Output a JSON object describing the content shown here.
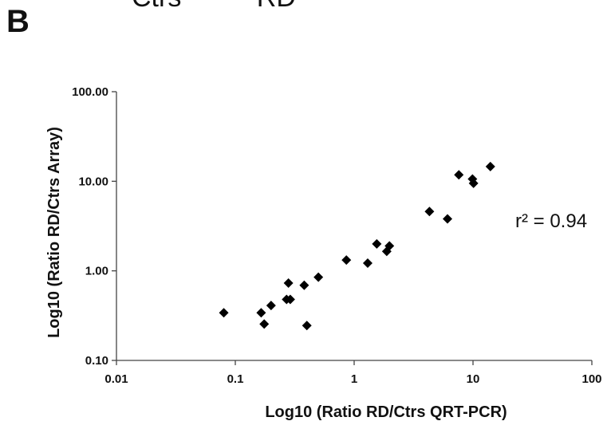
{
  "header_partial": "Ctrs          RD",
  "panel_label": "B",
  "chart_data": {
    "type": "scatter",
    "title": "",
    "xlabel": "Log10 (Ratio RD/Ctrs QRT-PCR)",
    "ylabel": "Log10 (Ratio RD/Ctrs Array)",
    "x_scale": "log",
    "y_scale": "log",
    "xlim": [
      0.01,
      100
    ],
    "ylim": [
      0.1,
      100
    ],
    "x_ticks": [
      0.01,
      0.1,
      1,
      10,
      100
    ],
    "x_tick_labels": [
      "0.01",
      "0.1",
      "1",
      "10",
      "100"
    ],
    "y_ticks": [
      0.1,
      1,
      10,
      100
    ],
    "y_tick_labels": [
      "0.10",
      "1.00",
      "10.00",
      "100.00"
    ],
    "grid": false,
    "legend": "none",
    "marker": "diamond",
    "marker_color": "#000000",
    "annotation": "r² = 0.94",
    "points": [
      {
        "x": 0.08,
        "y": 0.34
      },
      {
        "x": 0.165,
        "y": 0.34
      },
      {
        "x": 0.175,
        "y": 0.255
      },
      {
        "x": 0.2,
        "y": 0.41
      },
      {
        "x": 0.27,
        "y": 0.48
      },
      {
        "x": 0.28,
        "y": 0.73
      },
      {
        "x": 0.29,
        "y": 0.48
      },
      {
        "x": 0.38,
        "y": 0.69
      },
      {
        "x": 0.4,
        "y": 0.245
      },
      {
        "x": 0.5,
        "y": 0.85
      },
      {
        "x": 0.86,
        "y": 1.32
      },
      {
        "x": 1.3,
        "y": 1.22
      },
      {
        "x": 1.55,
        "y": 2.0
      },
      {
        "x": 1.88,
        "y": 1.65
      },
      {
        "x": 1.98,
        "y": 1.9
      },
      {
        "x": 4.3,
        "y": 4.6
      },
      {
        "x": 6.1,
        "y": 3.8
      },
      {
        "x": 7.6,
        "y": 11.8
      },
      {
        "x": 9.9,
        "y": 10.6
      },
      {
        "x": 10.1,
        "y": 9.5
      },
      {
        "x": 14.0,
        "y": 14.6
      }
    ]
  }
}
